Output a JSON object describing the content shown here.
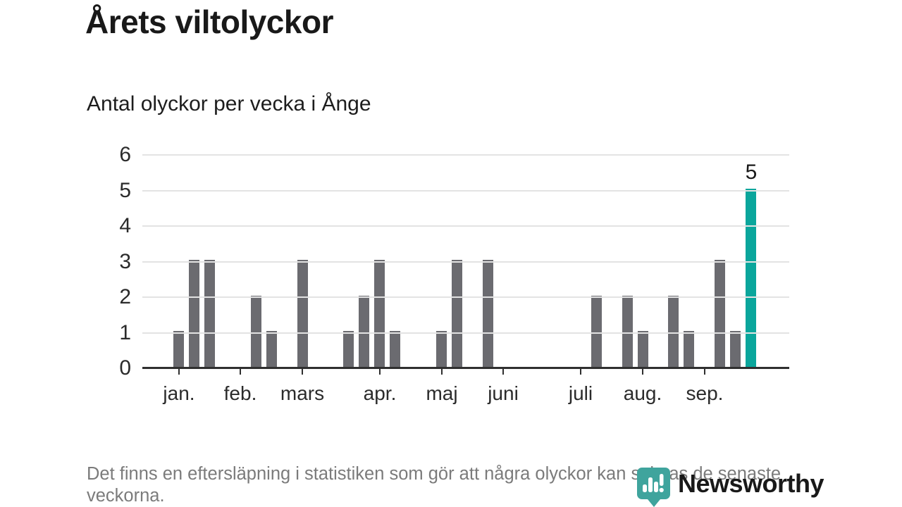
{
  "title": "Årets viltolyckor",
  "subtitle": "Antal olyckor per vecka i Ånge",
  "footnote": "Det finns en eftersläpning i statistiken som gör att några olyckor kan saknas de senaste veckorna.",
  "logo": {
    "text": "Newsworthy"
  },
  "colors": {
    "bar": "#6b6b70",
    "highlight": "#0aa69c",
    "grid": "#e3e3e3",
    "axis": "#2f2f2f",
    "logo_teal": "#3fa49d",
    "footnote_gray": "#7b7b7b"
  },
  "chart_data": {
    "type": "bar",
    "title": "Årets viltolyckor",
    "subtitle": "Antal olyckor per vecka i Ånge",
    "xlabel": "",
    "ylabel": "",
    "x_unit": "vecka",
    "x": [
      1,
      2,
      3,
      4,
      5,
      6,
      7,
      8,
      9,
      10,
      11,
      12,
      13,
      14,
      15,
      16,
      17,
      18,
      19,
      20,
      21,
      22,
      23,
      24,
      25,
      26,
      27,
      28,
      29,
      30,
      31,
      32,
      33,
      34,
      35,
      36,
      37,
      38
    ],
    "values": [
      1,
      3,
      3,
      0,
      0,
      2,
      1,
      0,
      3,
      0,
      0,
      1,
      2,
      3,
      1,
      0,
      0,
      1,
      3,
      0,
      3,
      0,
      0,
      0,
      0,
      0,
      0,
      2,
      0,
      2,
      1,
      0,
      2,
      1,
      0,
      3,
      1,
      5
    ],
    "highlight_index": 37,
    "annotation": {
      "index": 37,
      "label": "5"
    },
    "yticks": [
      0,
      1,
      2,
      3,
      4,
      5,
      6
    ],
    "ylim": [
      0,
      6
    ],
    "grid": true,
    "legend": false,
    "month_ticks": [
      {
        "label": "jan.",
        "week": 1
      },
      {
        "label": "feb.",
        "week": 5
      },
      {
        "label": "mars",
        "week": 9
      },
      {
        "label": "apr.",
        "week": 14
      },
      {
        "label": "maj",
        "week": 18
      },
      {
        "label": "juni",
        "week": 22
      },
      {
        "label": "juli",
        "week": 27
      },
      {
        "label": "aug.",
        "week": 31
      },
      {
        "label": "sep.",
        "week": 35
      }
    ]
  }
}
